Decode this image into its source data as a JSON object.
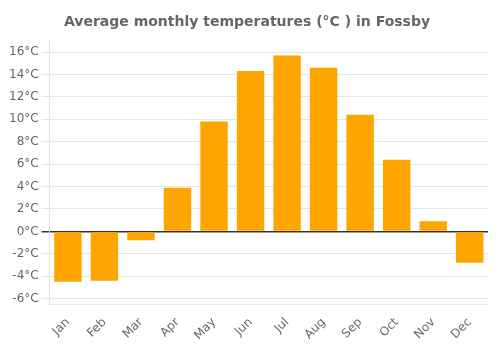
{
  "chart_data": {
    "type": "bar",
    "title": "Average monthly temperatures (°C ) in Fossby",
    "categories": [
      "Jan",
      "Feb",
      "Mar",
      "Apr",
      "May",
      "Jun",
      "Jul",
      "Aug",
      "Sep",
      "Oct",
      "Nov",
      "Dec"
    ],
    "values": [
      -4.5,
      -4.4,
      -0.8,
      3.9,
      9.8,
      14.3,
      15.7,
      14.6,
      10.4,
      6.4,
      0.9,
      -2.8
    ],
    "color": "#FFA500",
    "ylim": [
      -6.5,
      17
    ],
    "yticks": [
      {
        "value": -6,
        "label": "-6°C"
      },
      {
        "value": -4,
        "label": "-4°C"
      },
      {
        "value": -2,
        "label": "-2°C"
      },
      {
        "value": 0,
        "label": "0°C"
      },
      {
        "value": 2,
        "label": "2°C"
      },
      {
        "value": 4,
        "label": "4°C"
      },
      {
        "value": 6,
        "label": "6°C"
      },
      {
        "value": 8,
        "label": "8°C"
      },
      {
        "value": 10,
        "label": "10°C"
      },
      {
        "value": 12,
        "label": "12°C"
      },
      {
        "value": 14,
        "label": "14°C"
      },
      {
        "value": 16,
        "label": "16°C"
      }
    ],
    "grid": true
  }
}
